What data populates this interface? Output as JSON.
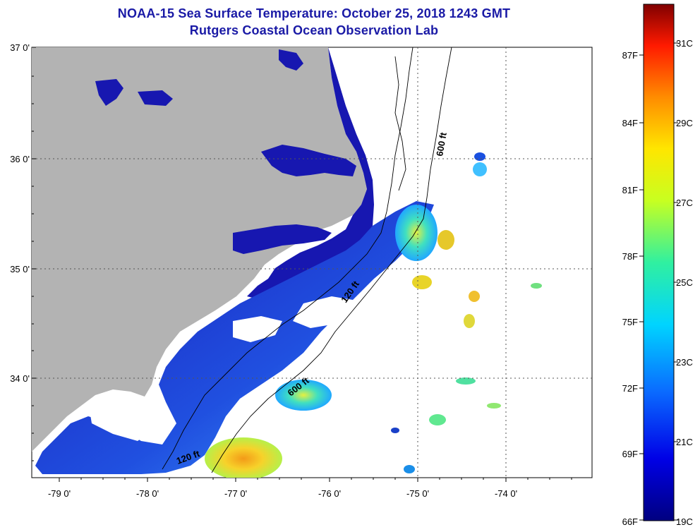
{
  "header": {
    "title_line1": "NOAA-15 Sea Surface Temperature:  October 25, 2018 1243 GMT",
    "title_line2": "Rutgers Coastal Ocean Observation Lab"
  },
  "map": {
    "lat_labels": [
      "37 0'",
      "36 0'",
      "35 0'",
      "34 0'"
    ],
    "lon_labels": [
      "-79 0'",
      "-78 0'",
      "-77 0'",
      "-76 0'",
      "-75 0'",
      "-74 0'"
    ],
    "contour_labels": [
      "600 ft",
      "120 ft",
      "600 ft",
      "120 ft"
    ],
    "colors": {
      "land": "#b3b3b3",
      "cold_water": "#1717b0",
      "mid_water": "#2f7bff",
      "warm_water": "#f5d020",
      "hot_water": "#f08a16"
    }
  },
  "colorbar": {
    "fahrenheit_labels": [
      "87F",
      "84F",
      "81F",
      "78F",
      "75F",
      "72F",
      "69F",
      "66F"
    ],
    "celsius_labels": [
      "31C",
      "29C",
      "27C",
      "25C",
      "23C",
      "21C",
      "19C"
    ],
    "range_c": [
      19,
      32
    ]
  }
}
